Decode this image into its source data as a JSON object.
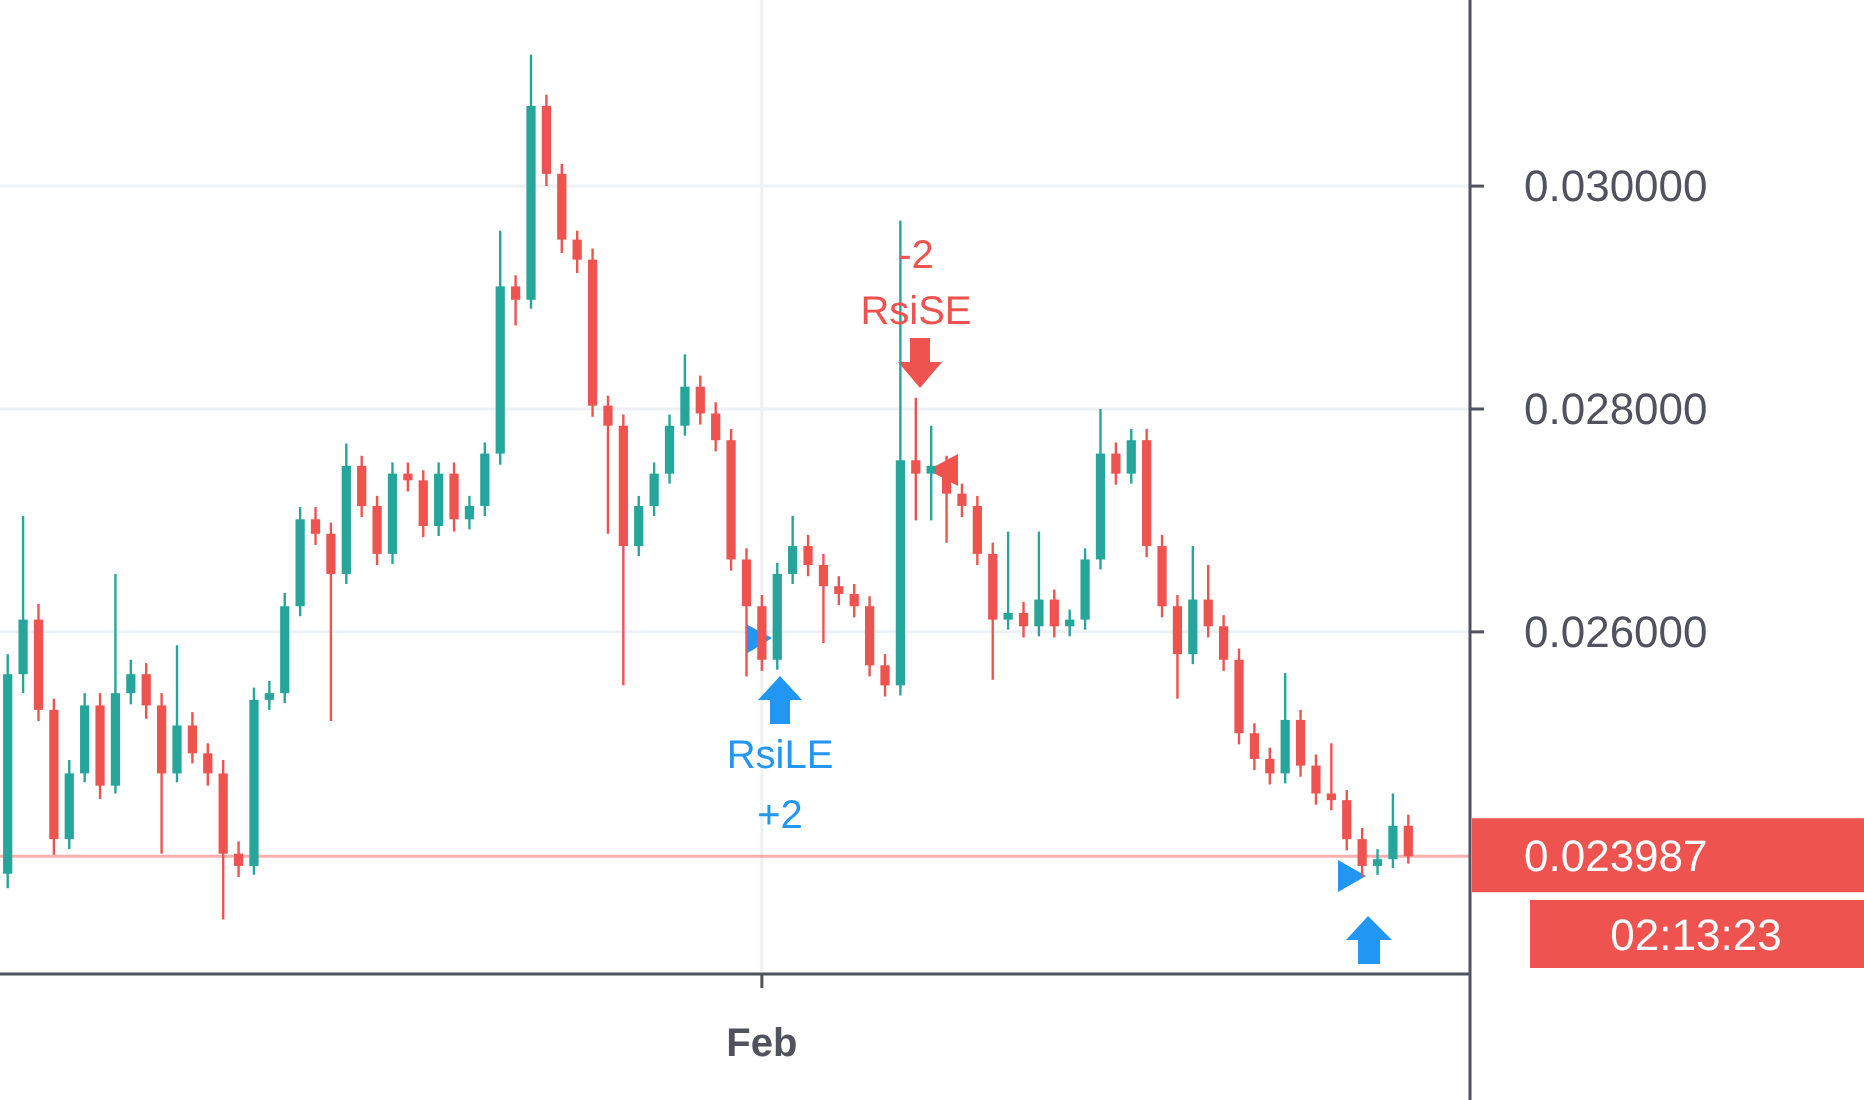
{
  "chart_data": {
    "type": "candlestick",
    "categories": [
      null,
      null,
      null,
      null,
      null,
      null,
      null,
      null,
      null,
      null,
      null,
      null,
      null,
      null,
      null,
      null,
      null,
      null,
      null,
      null,
      null,
      null,
      null,
      null,
      null,
      null,
      null,
      null,
      null,
      null,
      null,
      null,
      null,
      null,
      null,
      null,
      null,
      null,
      null,
      null,
      null,
      null,
      null,
      null,
      null,
      null,
      null,
      null,
      null,
      "Feb",
      null,
      null,
      null,
      null,
      null,
      null,
      null,
      null,
      null,
      null,
      null,
      null,
      null,
      null,
      null,
      null,
      null,
      null,
      null,
      null,
      null,
      null,
      null,
      null,
      null,
      null,
      null,
      null,
      null,
      null,
      null,
      null,
      null,
      null,
      null,
      null,
      null,
      null,
      null,
      null,
      null,
      null
    ],
    "ohlc": [
      [
        0.02383,
        0.0258,
        0.0237,
        0.02562
      ],
      [
        0.02562,
        0.02704,
        0.02545,
        0.02611
      ],
      [
        0.02611,
        0.02625,
        0.0252,
        0.0253
      ],
      [
        0.0253,
        0.0254,
        0.024,
        0.02414
      ],
      [
        0.02414,
        0.02485,
        0.02405,
        0.02473
      ],
      [
        0.02473,
        0.02545,
        0.02465,
        0.02534
      ],
      [
        0.02534,
        0.02545,
        0.0245,
        0.02462
      ],
      [
        0.02462,
        0.02652,
        0.02455,
        0.02545
      ],
      [
        0.02545,
        0.02575,
        0.02535,
        0.02562
      ],
      [
        0.02562,
        0.02572,
        0.02522,
        0.02534
      ],
      [
        0.02534,
        0.02545,
        0.02401,
        0.02473
      ],
      [
        0.02473,
        0.02588,
        0.02465,
        0.02516
      ],
      [
        0.02516,
        0.02528,
        0.02482,
        0.02491
      ],
      [
        0.02491,
        0.025,
        0.02462,
        0.02473
      ],
      [
        0.02473,
        0.02485,
        0.02342,
        0.02401
      ],
      [
        0.02401,
        0.02412,
        0.0238,
        0.0239
      ],
      [
        0.0239,
        0.0255,
        0.02382,
        0.02539
      ],
      [
        0.02539,
        0.02556,
        0.0253,
        0.02545
      ],
      [
        0.02545,
        0.02635,
        0.02536,
        0.02623
      ],
      [
        0.02623,
        0.02712,
        0.02614,
        0.02701
      ],
      [
        0.02701,
        0.02712,
        0.02678,
        0.02688
      ],
      [
        0.02688,
        0.02698,
        0.0252,
        0.02652
      ],
      [
        0.02652,
        0.02769,
        0.02643,
        0.02749
      ],
      [
        0.02749,
        0.02758,
        0.02703,
        0.02713
      ],
      [
        0.02713,
        0.02722,
        0.0266,
        0.0267
      ],
      [
        0.0267,
        0.02752,
        0.02661,
        0.02742
      ],
      [
        0.02742,
        0.02752,
        0.02726,
        0.02736
      ],
      [
        0.02736,
        0.02745,
        0.02685,
        0.02695
      ],
      [
        0.02695,
        0.02752,
        0.02686,
        0.02742
      ],
      [
        0.02742,
        0.02752,
        0.0269,
        0.02701
      ],
      [
        0.02701,
        0.02722,
        0.02692,
        0.02713
      ],
      [
        0.02713,
        0.0277,
        0.02704,
        0.0276
      ],
      [
        0.0276,
        0.0296,
        0.0275,
        0.0291
      ],
      [
        0.0291,
        0.0292,
        0.02875,
        0.02898
      ],
      [
        0.02898,
        0.03118,
        0.0289,
        0.03072
      ],
      [
        0.03072,
        0.03082,
        0.03,
        0.03011
      ],
      [
        0.03011,
        0.0302,
        0.0294,
        0.02952
      ],
      [
        0.02952,
        0.0296,
        0.02922,
        0.02934
      ],
      [
        0.02934,
        0.02944,
        0.02793,
        0.02803
      ],
      [
        0.02803,
        0.02812,
        0.02688,
        0.02785
      ],
      [
        0.02785,
        0.02795,
        0.02552,
        0.02677
      ],
      [
        0.02677,
        0.02722,
        0.02668,
        0.02713
      ],
      [
        0.02713,
        0.02752,
        0.02704,
        0.02742
      ],
      [
        0.02742,
        0.02795,
        0.02733,
        0.02785
      ],
      [
        0.02785,
        0.02849,
        0.02776,
        0.0282
      ],
      [
        0.0282,
        0.0283,
        0.02786,
        0.02796
      ],
      [
        0.02796,
        0.02806,
        0.02762,
        0.02772
      ],
      [
        0.02772,
        0.02782,
        0.02655,
        0.02665
      ],
      [
        0.02665,
        0.02675,
        0.0256,
        0.02623
      ],
      [
        0.02623,
        0.02633,
        0.02565,
        0.02575
      ],
      [
        0.02575,
        0.02662,
        0.02566,
        0.02652
      ],
      [
        0.02652,
        0.02704,
        0.02643,
        0.02677
      ],
      [
        0.02677,
        0.02687,
        0.0265,
        0.0266
      ],
      [
        0.0266,
        0.0267,
        0.0259,
        0.02641
      ],
      [
        0.02641,
        0.0265,
        0.02624,
        0.02634
      ],
      [
        0.02634,
        0.02643,
        0.02613,
        0.02623
      ],
      [
        0.02623,
        0.02632,
        0.0256,
        0.0257
      ],
      [
        0.0257,
        0.0258,
        0.02542,
        0.02552
      ],
      [
        0.02552,
        0.02969,
        0.02543,
        0.02754
      ],
      [
        0.02754,
        0.0281,
        0.027,
        0.02742
      ],
      [
        0.02742,
        0.02785,
        0.027,
        0.02749
      ],
      [
        0.02749,
        0.02758,
        0.0268,
        0.02724
      ],
      [
        0.02724,
        0.02733,
        0.02703,
        0.02713
      ],
      [
        0.02713,
        0.02722,
        0.0266,
        0.0267
      ],
      [
        0.0267,
        0.0268,
        0.02557,
        0.02611
      ],
      [
        0.02611,
        0.0269,
        0.02602,
        0.02617
      ],
      [
        0.02617,
        0.02627,
        0.02595,
        0.02605
      ],
      [
        0.02605,
        0.0269,
        0.02596,
        0.02629
      ],
      [
        0.02629,
        0.02638,
        0.02595,
        0.02605
      ],
      [
        0.02605,
        0.0262,
        0.02596,
        0.02611
      ],
      [
        0.02611,
        0.02675,
        0.02602,
        0.02665
      ],
      [
        0.02665,
        0.028,
        0.02656,
        0.0276
      ],
      [
        0.0276,
        0.0277,
        0.02732,
        0.02742
      ],
      [
        0.02742,
        0.02782,
        0.02733,
        0.02772
      ],
      [
        0.02772,
        0.02782,
        0.02667,
        0.02677
      ],
      [
        0.02677,
        0.02687,
        0.02613,
        0.02623
      ],
      [
        0.02623,
        0.02633,
        0.0254,
        0.0258
      ],
      [
        0.0258,
        0.02677,
        0.02571,
        0.02629
      ],
      [
        0.02629,
        0.0266,
        0.02595,
        0.02605
      ],
      [
        0.02605,
        0.02615,
        0.02565,
        0.02575
      ],
      [
        0.02575,
        0.02585,
        0.02499,
        0.02509
      ],
      [
        0.02509,
        0.02518,
        0.02476,
        0.02486
      ],
      [
        0.02486,
        0.02496,
        0.02463,
        0.02473
      ],
      [
        0.02473,
        0.02563,
        0.02464,
        0.02521
      ],
      [
        0.02521,
        0.0253,
        0.0247,
        0.0248
      ],
      [
        0.0248,
        0.0249,
        0.02445,
        0.02455
      ],
      [
        0.02455,
        0.025,
        0.0244,
        0.02449
      ],
      [
        0.02449,
        0.02458,
        0.02404,
        0.02414
      ],
      [
        0.02414,
        0.02424,
        0.0238,
        0.0239
      ],
      [
        0.0239,
        0.02405,
        0.02382,
        0.02396
      ],
      [
        0.02396,
        0.02455,
        0.02388,
        0.02426
      ],
      [
        0.02426,
        0.02436,
        0.02392,
        0.023987
      ]
    ],
    "colors": [
      "#26a69a",
      "#26a69a",
      "#ef5350",
      "#ef5350",
      "#26a69a",
      "#26a69a",
      "#ef5350",
      "#26a69a",
      "#26a69a",
      "#ef5350",
      "#ef5350",
      "#26a69a",
      "#ef5350",
      "#ef5350",
      "#ef5350",
      "#ef5350",
      "#26a69a",
      "#26a69a",
      "#26a69a",
      "#26a69a",
      "#ef5350",
      "#ef5350",
      "#26a69a",
      "#ef5350",
      "#ef5350",
      "#26a69a",
      "#ef5350",
      "#ef5350",
      "#26a69a",
      "#ef5350",
      "#26a69a",
      "#26a69a",
      "#26a69a",
      "#ef5350",
      "#26a69a",
      "#ef5350",
      "#ef5350",
      "#ef5350",
      "#ef5350",
      "#ef5350",
      "#ef5350",
      "#26a69a",
      "#26a69a",
      "#26a69a",
      "#26a69a",
      "#ef5350",
      "#ef5350",
      "#ef5350",
      "#ef5350",
      "#ef5350",
      "#26a69a",
      "#26a69a",
      "#ef5350",
      "#ef5350",
      "#ef5350",
      "#ef5350",
      "#ef5350",
      "#ef5350",
      "#26a69a",
      "#ef5350",
      "#26a69a",
      "#ef5350",
      "#ef5350",
      "#ef5350",
      "#ef5350",
      "#26a69a",
      "#ef5350",
      "#26a69a",
      "#ef5350",
      "#26a69a",
      "#26a69a",
      "#26a69a",
      "#ef5350",
      "#26a69a",
      "#ef5350",
      "#ef5350",
      "#ef5350",
      "#26a69a",
      "#ef5350",
      "#ef5350",
      "#ef5350",
      "#ef5350",
      "#ef5350",
      "#26a69a",
      "#ef5350",
      "#ef5350",
      "#ef5350",
      "#ef5350",
      "#ef5350",
      "#26a69a",
      "#26a69a",
      "#ef5350"
    ],
    "ylim": [
      0.02293,
      0.03167
    ],
    "yticks": [
      {
        "value": 0.026,
        "label": "0.026000"
      },
      {
        "value": 0.028,
        "label": "0.028000"
      },
      {
        "value": 0.03,
        "label": "0.030000"
      }
    ],
    "grid": true,
    "ref_lines": [
      {
        "axis": "y",
        "value": 0.023987,
        "label": "0.023987",
        "color": "#ef5350"
      }
    ],
    "annotations": [
      "-2",
      "RsiSE",
      "RsiLE",
      "+2",
      "02:13:23"
    ]
  }
}
